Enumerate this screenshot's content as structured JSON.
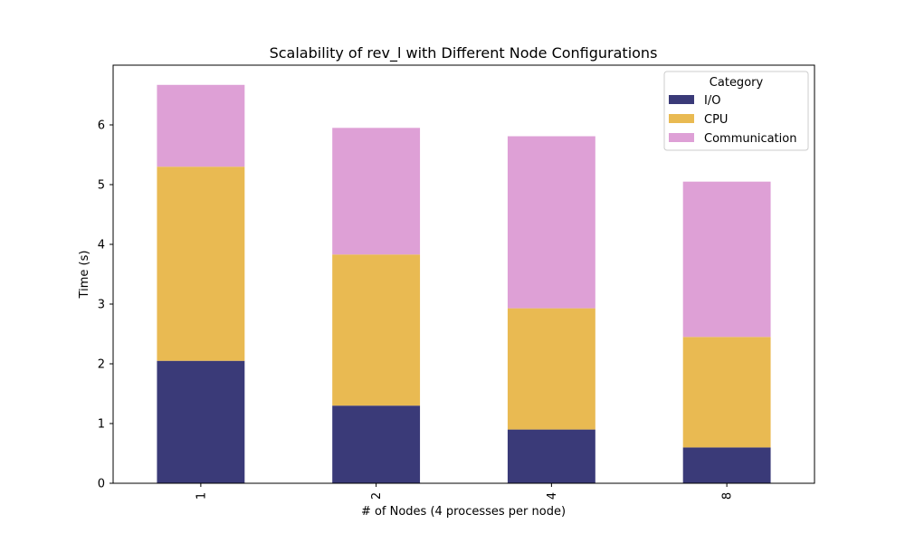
{
  "chart_data": {
    "type": "bar",
    "stacked": true,
    "title": "Scalability of rev_l with Different Node Configurations",
    "xlabel": "# of Nodes (4 processes per node)",
    "ylabel": "Time (s)",
    "categories": [
      "1",
      "2",
      "4",
      "8"
    ],
    "yticks": [
      "0",
      "1",
      "2",
      "3",
      "4",
      "5",
      "6"
    ],
    "ylim": [
      0,
      7.0
    ],
    "legend": {
      "title": "Category",
      "placement": "top-right"
    },
    "series": [
      {
        "name": "I/O",
        "color": "#3a3a78",
        "values": [
          2.05,
          1.3,
          0.9,
          0.6
        ]
      },
      {
        "name": "CPU",
        "color": "#e9ba52",
        "values": [
          3.25,
          2.53,
          2.03,
          1.85
        ]
      },
      {
        "name": "Communication",
        "color": "#dea0d6",
        "values": [
          1.37,
          2.12,
          2.88,
          2.6
        ]
      }
    ]
  }
}
